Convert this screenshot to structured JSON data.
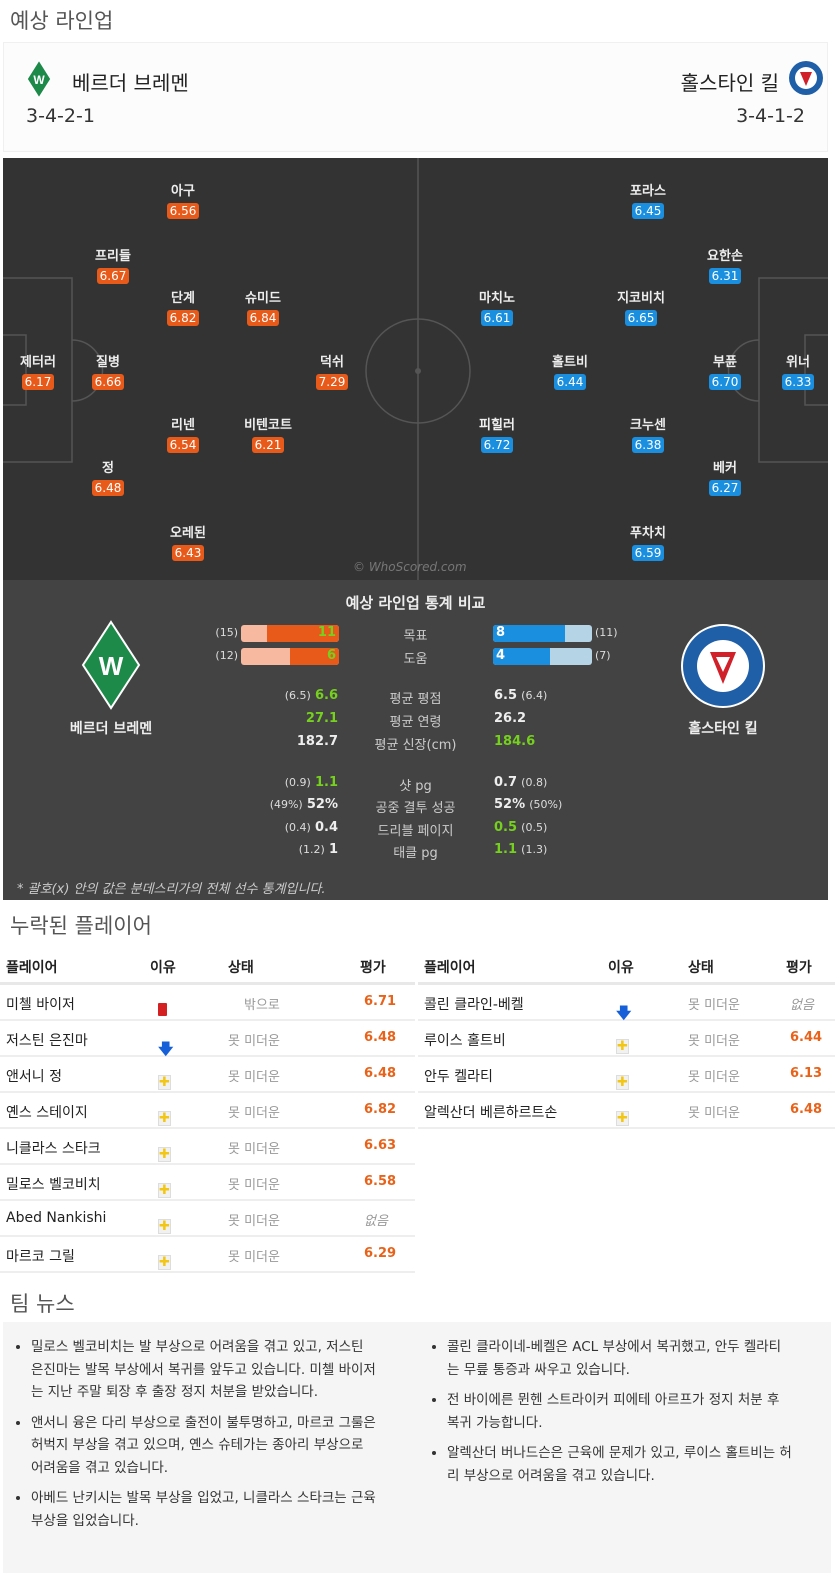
{
  "section_title": "예상 라인업",
  "home": {
    "name": "베르더 브레멘",
    "formation": "3-4-2-1",
    "color": "#e85a1a",
    "players": [
      {
        "name": "아구",
        "rating": "6.56"
      },
      {
        "name": "프리들",
        "rating": "6.67"
      },
      {
        "name": "단계",
        "rating": "6.82"
      },
      {
        "name": "슈미드",
        "rating": "6.84"
      },
      {
        "name": "제터러",
        "rating": "6.17"
      },
      {
        "name": "질병",
        "rating": "6.66"
      },
      {
        "name": "덕쉬",
        "rating": "7.29"
      },
      {
        "name": "리넨",
        "rating": "6.54"
      },
      {
        "name": "비텐코트",
        "rating": "6.21"
      },
      {
        "name": "정",
        "rating": "6.48"
      },
      {
        "name": "오레된",
        "rating": "6.43"
      }
    ]
  },
  "away": {
    "name": "홀스타인 킬",
    "formation": "3-4-1-2",
    "color": "#1a8fe0",
    "players": [
      {
        "name": "포라스",
        "rating": "6.45"
      },
      {
        "name": "요한손",
        "rating": "6.31"
      },
      {
        "name": "마치노",
        "rating": "6.61"
      },
      {
        "name": "지코비치",
        "rating": "6.65"
      },
      {
        "name": "홀트비",
        "rating": "6.44"
      },
      {
        "name": "부퓬",
        "rating": "6.70"
      },
      {
        "name": "위너",
        "rating": "6.33"
      },
      {
        "name": "피힐러",
        "rating": "6.72"
      },
      {
        "name": "크누센",
        "rating": "6.38"
      },
      {
        "name": "베커",
        "rating": "6.27"
      },
      {
        "name": "푸차치",
        "rating": "6.59"
      }
    ]
  },
  "watermark": "© WhoScored.com",
  "stats": {
    "title": "예상 라인업 통계 비교",
    "home_name": "베르더 브레멘",
    "away_name": "홀스타인 킬",
    "bars": [
      {
        "label": "목표",
        "home": 11,
        "home_league": 15,
        "away": 8,
        "away_league": 11,
        "home_paren": "(15)",
        "away_paren": "(11)",
        "home_txt": "11",
        "away_txt": "8"
      },
      {
        "label": "도움",
        "home": 6,
        "home_league": 12,
        "away": 4,
        "away_league": 7,
        "home_paren": "(12)",
        "away_paren": "(7)",
        "home_txt": "6",
        "away_txt": "4"
      }
    ],
    "rows": [
      {
        "label": "평균 평점",
        "home_paren": "(6.5)",
        "home": "6.6",
        "away": "6.5",
        "away_paren": "(6.4)",
        "better": "home"
      },
      {
        "label": "평균 연령",
        "home_paren": "",
        "home": "27.1",
        "away": "26.2",
        "away_paren": "",
        "better": "home"
      },
      {
        "label": "평균 신장(cm)",
        "home_paren": "",
        "home": "182.7",
        "away": "184.6",
        "away_paren": "",
        "better": "away"
      },
      {
        "label": "샷 pg",
        "home_paren": "(0.9)",
        "home": "1.1",
        "away": "0.7",
        "away_paren": "(0.8)",
        "better": "home"
      },
      {
        "label": "공중 결투 성공",
        "home_paren": "(49%)",
        "home": "52%",
        "away": "52%",
        "away_paren": "(50%)",
        "better": "none"
      },
      {
        "label": "드리블 페이지",
        "home_paren": "(0.4)",
        "home": "0.4",
        "away": "0.5",
        "away_paren": "(0.5)",
        "better": "away"
      },
      {
        "label": "태클 pg",
        "home_paren": "(1.2)",
        "home": "1",
        "away": "1.1",
        "away_paren": "(1.3)",
        "better": "away"
      }
    ],
    "footnote": "* 괄호(x) 안의 값은 분데스리가의 전체 선수 통계입니다."
  },
  "missing": {
    "title": "누락된 플레이어",
    "headers": {
      "player": "플레이어",
      "reason": "이유",
      "status": "상태",
      "rating": "평가"
    },
    "home": [
      {
        "player": "미첼 바이저",
        "reason": "red-card-icon",
        "status": "밖으로",
        "rating": "6.71"
      },
      {
        "player": "저스틴 은진마",
        "reason": "arrow-down-icon",
        "status": "못 미더운",
        "rating": "6.48"
      },
      {
        "player": "앤서니 정",
        "reason": "injury-cross-icon",
        "status": "못 미더운",
        "rating": "6.48"
      },
      {
        "player": "옌스 스테이지",
        "reason": "injury-cross-icon",
        "status": "못 미더운",
        "rating": "6.82"
      },
      {
        "player": "니클라스 스타크",
        "reason": "injury-cross-icon",
        "status": "못 미더운",
        "rating": "6.63"
      },
      {
        "player": "밀로스 벨코비치",
        "reason": "injury-cross-icon",
        "status": "못 미더운",
        "rating": "6.58"
      },
      {
        "player": "Abed Nankishi",
        "reason": "injury-cross-icon",
        "status": "못 미더운",
        "rating": "없음"
      },
      {
        "player": "마르코 그릴",
        "reason": "injury-cross-icon",
        "status": "못 미더운",
        "rating": "6.29"
      }
    ],
    "away": [
      {
        "player": "콜린 클라인-베켈",
        "reason": "arrow-down-icon",
        "status": "못 미더운",
        "rating": "없음"
      },
      {
        "player": "루이스 홀트비",
        "reason": "injury-cross-icon",
        "status": "못 미더운",
        "rating": "6.44"
      },
      {
        "player": "안두 켈라티",
        "reason": "injury-cross-icon",
        "status": "못 미더운",
        "rating": "6.13"
      },
      {
        "player": "알렉산더 베른하르트손",
        "reason": "injury-cross-icon",
        "status": "못 미더운",
        "rating": "6.48"
      }
    ]
  },
  "news": {
    "title": "팀 뉴스",
    "home": [
      "밀로스 벨코비치는 발 부상으로 어려움을 겪고 있고, 저스틴 은진마는 발목 부상에서 복귀를 앞두고 있습니다. 미첼 바이저는 지난 주말 퇴장 후 출장 정지 처분을 받았습니다.",
      "앤서니 융은 다리 부상으로 출전이 불투명하고, 마르코 그룰은 허벅지 부상을 겪고 있으며, 옌스 슈테가는 종아리 부상으로 어려움을 겪고 있습니다.",
      "아베드 난키시는 발목 부상을 입었고, 니클라스 스타크는 근육 부상을 입었습니다."
    ],
    "away": [
      "콜린 클라이네-베켈은 ACL 부상에서 복귀했고, 안두 켈라티는 무릎 통증과 싸우고 있습니다.",
      "전 바이에른 뮌헨 스트라이커 피에테 아르프가 정지 처분 후 복귀 가능합니다.",
      "알렉산더 버나드슨은 근육에 문제가 있고, 루이스 홀트비는 허리 부상으로 어려움을 겪고 있습니다."
    ]
  }
}
